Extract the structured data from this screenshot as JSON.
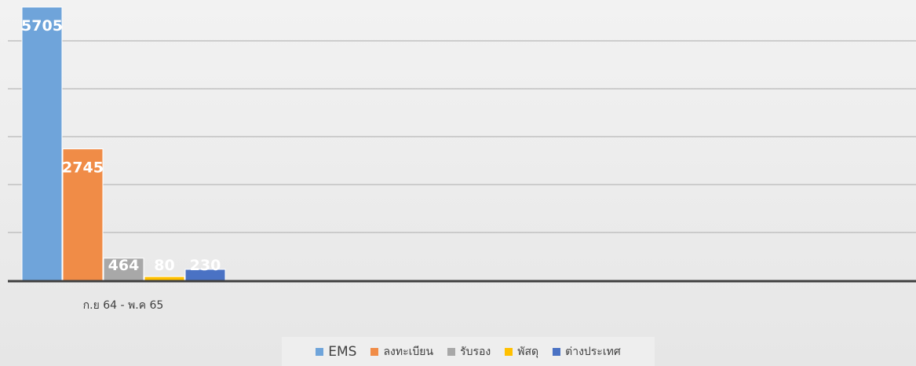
{
  "chart_data": {
    "type": "bar",
    "categories": [
      "ก.ย 64 - พ.ค 65"
    ],
    "ylim": [
      0,
      6000
    ],
    "grid": true,
    "legend_position": "bottom",
    "series": [
      {
        "name": "EMS",
        "values": [
          5705
        ],
        "color": "#6fa4da"
      },
      {
        "name": "ลงทะเบียน",
        "values": [
          2745
        ],
        "color": "#f08c47"
      },
      {
        "name": "รับรอง",
        "values": [
          464
        ],
        "color": "#a8a8a8"
      },
      {
        "name": "พัสดุ",
        "values": [
          80
        ],
        "color": "#ffc000"
      },
      {
        "name": "ต่างประเทศ",
        "values": [
          230
        ],
        "color": "#4a72c4"
      }
    ]
  }
}
